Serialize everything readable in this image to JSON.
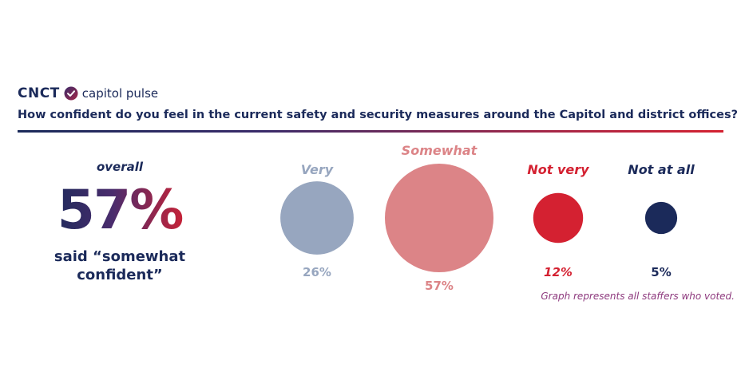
{
  "brand": {
    "name": "CNCT",
    "product": "capitol pulse"
  },
  "question": "How confident do you feel in the current safety and security measures around the Capitol and district offices?",
  "summary": {
    "label": "overall",
    "value": "57%",
    "caption_line1": "said “somewhat",
    "caption_line2": "confident”"
  },
  "note": "Graph represents all staffers who voted.",
  "colors": {
    "navy": "#1b2a5a",
    "red": "#d42131",
    "very": "#97a6bf",
    "somewhat": "#dc8487",
    "not_very": "#d42131",
    "not_at_all": "#1b2a5a"
  },
  "chart_data": {
    "type": "bubble",
    "title": "How confident do you feel in the current safety and security measures around the Capitol and district offices?",
    "categories": [
      "Very",
      "Somewhat",
      "Not very",
      "Not at all"
    ],
    "values": [
      26,
      57,
      12,
      5
    ],
    "value_labels": [
      "26%",
      "57%",
      "12%",
      "5%"
    ],
    "unit": "%",
    "label_colors": [
      "#97a6bf",
      "#dc8487",
      "#d42131",
      "#1b2a5a"
    ],
    "bubble_colors": [
      "#97a6bf",
      "#dc8487",
      "#d42131",
      "#1b2a5a"
    ]
  }
}
